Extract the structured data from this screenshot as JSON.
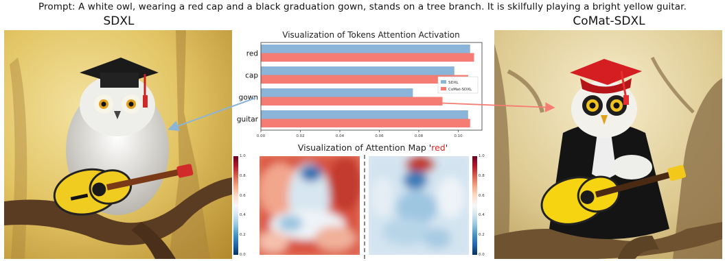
{
  "prompt": "Prompt: A white owl, wearing a red cap and a black graduation gown, stands on a tree branch. It is skilfully playing a bright yellow guitar.",
  "left_model": "SDXL",
  "right_model": "CoMat-SDXL",
  "bar_chart_title": "Visualization of Tokens Attention Activation",
  "map_title_prefix": "Visualization of Attention Map '",
  "map_title_token": "red",
  "map_title_suffix": "'",
  "colorbar_ticks": [
    "1.0",
    "0.8",
    "0.6",
    "0.4",
    "0.2",
    "0.0"
  ],
  "colors": {
    "sdxl": "#8ab4d8",
    "comat": "#f47c72"
  },
  "chart_data": {
    "type": "bar",
    "orientation": "horizontal",
    "categories": [
      "red",
      "cap",
      "gown",
      "guitar"
    ],
    "series": [
      {
        "name": "SDXL",
        "values": [
          0.106,
          0.098,
          0.077,
          0.105
        ]
      },
      {
        "name": "CoMat-SDXL",
        "values": [
          0.108,
          0.105,
          0.092,
          0.106
        ]
      }
    ],
    "xticks": [
      "0.00",
      "0.02",
      "0.04",
      "0.06",
      "0.08",
      "0.10"
    ],
    "xlim": [
      0,
      0.112
    ],
    "legend": "right"
  }
}
